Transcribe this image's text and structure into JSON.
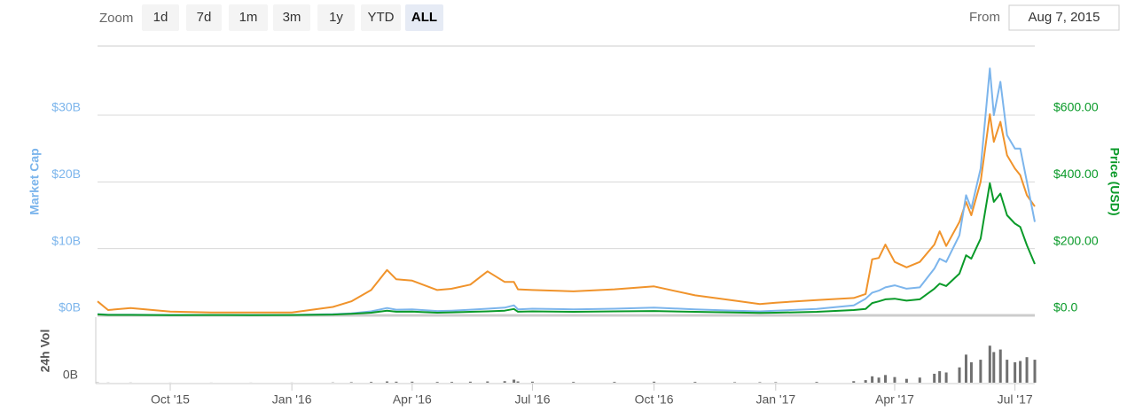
{
  "toolbar": {
    "zoom_label": "Zoom",
    "buttons": [
      "1d",
      "7d",
      "1m",
      "3m",
      "1y",
      "YTD",
      "ALL"
    ],
    "active_button": 6,
    "from_label": "From",
    "from_date": "Aug 7, 2015"
  },
  "chart_data": {
    "type": "line",
    "ylabel": "Market Cap",
    "y2label": "Price (USD)",
    "x": [
      "2015-08-07",
      "2015-08-15",
      "2015-09-01",
      "2015-10-01",
      "2015-11-01",
      "2015-12-01",
      "2016-01-01",
      "2016-02-01",
      "2016-02-15",
      "2016-03-01",
      "2016-03-13",
      "2016-03-20",
      "2016-04-01",
      "2016-04-20",
      "2016-05-01",
      "2016-05-15",
      "2016-05-28",
      "2016-06-10",
      "2016-06-17",
      "2016-06-20",
      "2016-07-01",
      "2016-08-01",
      "2016-09-01",
      "2016-10-01",
      "2016-11-01",
      "2016-12-01",
      "2016-12-20",
      "2017-01-01",
      "2017-02-01",
      "2017-03-01",
      "2017-03-10",
      "2017-03-15",
      "2017-03-20",
      "2017-03-25",
      "2017-04-01",
      "2017-04-10",
      "2017-04-20",
      "2017-05-01",
      "2017-05-05",
      "2017-05-10",
      "2017-05-20",
      "2017-05-25",
      "2017-05-29",
      "2017-06-05",
      "2017-06-12",
      "2017-06-15",
      "2017-06-20",
      "2017-06-25",
      "2017-07-01",
      "2017-07-05",
      "2017-07-10",
      "2017-07-16"
    ],
    "xlim": [
      "2015-08-07",
      "2017-07-16"
    ],
    "xticks": [
      {
        "value": "2015-10-01",
        "label": "Oct '15"
      },
      {
        "value": "2016-01-01",
        "label": "Jan '16"
      },
      {
        "value": "2016-04-01",
        "label": "Apr '16"
      },
      {
        "value": "2016-07-01",
        "label": "Jul '16"
      },
      {
        "value": "2016-10-01",
        "label": "Oct '16"
      },
      {
        "value": "2017-01-01",
        "label": "Jan '17"
      },
      {
        "value": "2017-04-01",
        "label": "Apr '17"
      },
      {
        "value": "2017-07-01",
        "label": "Jul '17"
      }
    ],
    "ylim": [
      0,
      40
    ],
    "yticks": [
      {
        "value": 0,
        "label": "$0B"
      },
      {
        "value": 10,
        "label": "$10B"
      },
      {
        "value": 20,
        "label": "$20B"
      },
      {
        "value": 30,
        "label": "$30B"
      }
    ],
    "y2lim": [
      0,
      800
    ],
    "y2ticks": [
      {
        "value": 0,
        "label": "$0.0"
      },
      {
        "value": 200,
        "label": "$200.00"
      },
      {
        "value": 400,
        "label": "$400.00"
      },
      {
        "value": 600,
        "label": "$600.00"
      }
    ],
    "y3lim": [
      0,
      0.2
    ],
    "grid": true,
    "series": [
      {
        "color": "#f0932b",
        "axis": "y3",
        "values": [
          0.0105,
          0.004,
          0.0055,
          0.0028,
          0.0022,
          0.0021,
          0.0022,
          0.0063,
          0.0105,
          0.019,
          0.034,
          0.027,
          0.026,
          0.019,
          0.02,
          0.023,
          0.033,
          0.025,
          0.025,
          0.0195,
          0.019,
          0.018,
          0.0195,
          0.0217,
          0.015,
          0.011,
          0.0085,
          0.0095,
          0.0115,
          0.013,
          0.016,
          0.042,
          0.043,
          0.053,
          0.04,
          0.036,
          0.04,
          0.053,
          0.063,
          0.052,
          0.07,
          0.085,
          0.075,
          0.1,
          0.1507,
          0.13,
          0.145,
          0.12,
          0.11,
          0.105,
          0.09,
          0.0816
        ]
      },
      {
        "color": "#7cb5ec",
        "values": [
          0.2,
          0.1,
          0.1,
          0.05,
          0.07,
          0.07,
          0.07,
          0.18,
          0.3,
          0.6,
          1.1,
          0.85,
          0.9,
          0.65,
          0.7,
          0.85,
          1.0,
          1.15,
          1.5,
          0.9,
          1.0,
          0.9,
          1.0,
          1.15,
          0.9,
          0.7,
          0.6,
          0.7,
          0.95,
          1.5,
          2.5,
          3.4,
          3.7,
          4.2,
          4.5,
          4.0,
          4.2,
          7.0,
          8.5,
          8.0,
          12,
          18,
          16,
          22,
          37,
          30,
          35,
          27,
          25,
          25,
          20,
          14
        ]
      },
      {
        "color": "#0a9a29",
        "axis": "y2",
        "values": [
          2.8,
          1.2,
          1.3,
          0.7,
          1.0,
          0.9,
          0.95,
          2.4,
          4.5,
          8,
          14,
          11,
          11.5,
          8,
          9,
          10.5,
          12,
          14,
          19,
          11,
          12,
          10.5,
          12,
          13,
          10.5,
          8.5,
          7.5,
          8,
          10.7,
          16,
          19,
          37,
          42,
          48,
          50,
          44,
          48,
          80,
          95,
          88,
          125,
          180,
          170,
          230,
          396,
          340,
          365,
          300,
          275,
          265,
          210,
          154
        ]
      }
    ],
    "volume": {
      "label": "24h Vol",
      "color": "#707070",
      "ylim": [
        0,
        2.5
      ],
      "yticks": [
        {
          "value": 0,
          "label": "0B"
        }
      ],
      "values": [
        0.01,
        0.005,
        0.005,
        0.003,
        0.003,
        0.003,
        0.004,
        0.01,
        0.02,
        0.03,
        0.05,
        0.04,
        0.04,
        0.03,
        0.03,
        0.04,
        0.05,
        0.06,
        0.12,
        0.05,
        0.04,
        0.03,
        0.03,
        0.04,
        0.03,
        0.02,
        0.02,
        0.02,
        0.03,
        0.06,
        0.1,
        0.25,
        0.2,
        0.3,
        0.22,
        0.15,
        0.2,
        0.35,
        0.45,
        0.4,
        0.6,
        1.1,
        0.8,
        0.9,
        1.45,
        1.2,
        1.3,
        0.9,
        0.8,
        0.85,
        1.0,
        0.9
      ]
    }
  }
}
